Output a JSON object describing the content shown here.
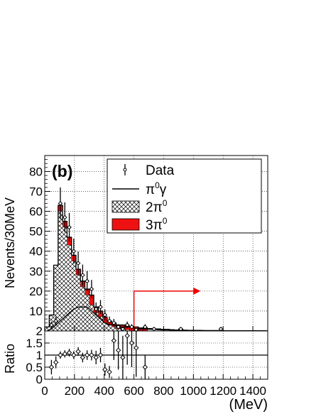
{
  "chart_data": {
    "type": "histogram",
    "panel_label": "(b)",
    "ylabel": "Nevents/30MeV",
    "ratio_ylabel": "Ratio",
    "xlabel": "(MeV)",
    "xlim": [
      0,
      1500
    ],
    "ylim": [
      0,
      88
    ],
    "ratio_ylim": [
      0,
      2
    ],
    "grid": true,
    "xticks": [
      "0",
      "200",
      "400",
      "600",
      "800",
      "1000",
      "1200",
      "1400"
    ],
    "yticks": [
      "10",
      "20",
      "30",
      "40",
      "50",
      "60",
      "70",
      "80"
    ],
    "ratio_yticks": [
      "0",
      "0.5",
      "1",
      "1.5",
      "2"
    ],
    "legend_position": "top-right",
    "legend": [
      {
        "label_base": "Data",
        "label_sup": "",
        "label_tail": "",
        "style": "points"
      },
      {
        "label_base": "π",
        "label_sup": "0",
        "label_tail": "γ",
        "style": "line"
      },
      {
        "label_base": "2π",
        "label_sup": "0",
        "label_tail": "",
        "style": "hatched"
      },
      {
        "label_base": "3π",
        "label_sup": "0",
        "label_tail": "",
        "style": "red"
      }
    ],
    "arrow": {
      "x": 600,
      "y_from": 0,
      "y_to": 20,
      "x_to": 1000,
      "color": "#ee0000"
    },
    "bin_width": 30,
    "bins_x": [
      0,
      30,
      60,
      90,
      120,
      150,
      180,
      210,
      240,
      270,
      300,
      330,
      360,
      390,
      420,
      450,
      480,
      510,
      540,
      570,
      600,
      630,
      660,
      690,
      720,
      750,
      780,
      810,
      840,
      870,
      900,
      930,
      960,
      990,
      1020,
      1050,
      1080,
      1110,
      1140,
      1170,
      1200,
      1230,
      1260,
      1290,
      1320,
      1350,
      1380,
      1410,
      1440,
      1470
    ],
    "total_mc": [
      2,
      8,
      33,
      63,
      55,
      47,
      38,
      31,
      25,
      21,
      18,
      12,
      10,
      7,
      5,
      4,
      3,
      3,
      2.5,
      2,
      2,
      1.5,
      1.5,
      1.2,
      1,
      1,
      0.8,
      0.8,
      0.6,
      0.5,
      0.5,
      0.4,
      0.3,
      0.3,
      0.3,
      0.2,
      0.2,
      0.2,
      0.2,
      0.2,
      0.1,
      0.1,
      0.1,
      0.1,
      0.1,
      0.1,
      0.1,
      0.1,
      0.1,
      0.1
    ],
    "two_pi0": [
      2,
      8,
      33,
      60,
      52,
      43,
      35,
      28,
      22,
      18,
      13,
      9,
      7,
      4,
      3,
      2,
      1,
      1,
      0.5,
      0,
      0,
      0,
      0,
      0,
      0,
      0,
      0,
      0,
      0,
      0,
      0,
      0,
      0,
      0,
      0,
      0,
      0,
      0,
      0,
      0,
      0,
      0,
      0,
      0,
      0,
      0,
      0,
      0,
      0,
      0
    ],
    "three_pi0": [
      0,
      0,
      0,
      3,
      3,
      4,
      3,
      3,
      3,
      3,
      5,
      3,
      3,
      3,
      2,
      2,
      2,
      2,
      2,
      2,
      2,
      1.5,
      1.5,
      0,
      0,
      0,
      0,
      0,
      0,
      0,
      1,
      0,
      0,
      0,
      0,
      0,
      0,
      0,
      0,
      0,
      0,
      0,
      0,
      0,
      0,
      0,
      0,
      0,
      0,
      0
    ],
    "pi0_gamma": [
      0,
      1,
      3,
      5,
      7,
      9,
      11,
      12,
      12,
      12,
      10,
      8,
      6,
      4,
      3,
      3,
      2,
      2,
      2,
      2,
      1,
      1,
      1,
      0.8,
      0.8,
      0.6,
      0.5,
      0.5,
      0.4,
      0.3,
      0.3,
      0.3,
      0.2,
      0.2,
      0.2,
      0.2,
      0.1,
      0.1,
      0.1,
      0.1,
      0.1,
      0.1,
      0.1,
      0.1,
      0.1,
      0.1,
      0.1,
      0.1,
      0.1,
      0.1
    ],
    "data": {
      "x": [
        45,
        75,
        105,
        135,
        165,
        195,
        225,
        255,
        285,
        315,
        345,
        375,
        405,
        435,
        465,
        495,
        525,
        555,
        585,
        615,
        675,
        735,
        915,
        1185
      ],
      "y": [
        3,
        5,
        64,
        57,
        52,
        40,
        34,
        28,
        25,
        21,
        11,
        12,
        8,
        5,
        4,
        2,
        1,
        3,
        2,
        0.6,
        2,
        1,
        1,
        1
      ],
      "err": [
        1.7,
        2.2,
        8,
        7.5,
        7.2,
        6.3,
        5.8,
        5.3,
        5,
        4.6,
        3.3,
        3.5,
        2.8,
        2.2,
        2,
        1.4,
        1,
        1.7,
        1.4,
        0.8,
        1.4,
        1,
        1,
        1
      ]
    },
    "ratio": {
      "x": [
        45,
        75,
        105,
        135,
        165,
        195,
        225,
        255,
        285,
        315,
        345,
        375,
        405,
        435,
        465,
        495,
        525,
        555,
        585,
        615,
        675
      ],
      "y": [
        0.5,
        0.7,
        1.0,
        1.05,
        1.1,
        1.0,
        1.15,
        0.9,
        1.0,
        1.0,
        0.9,
        1.0,
        0.4,
        0.3,
        1.6,
        1.2,
        0.9,
        1.8,
        1.5,
        1.3,
        0.5
      ],
      "err": [
        0.3,
        0.25,
        0.15,
        0.15,
        0.16,
        0.16,
        0.18,
        0.2,
        0.2,
        0.22,
        0.28,
        0.3,
        0.25,
        0.25,
        0.8,
        0.8,
        0.9,
        1.2,
        1.0,
        1.2,
        0.5
      ]
    }
  }
}
